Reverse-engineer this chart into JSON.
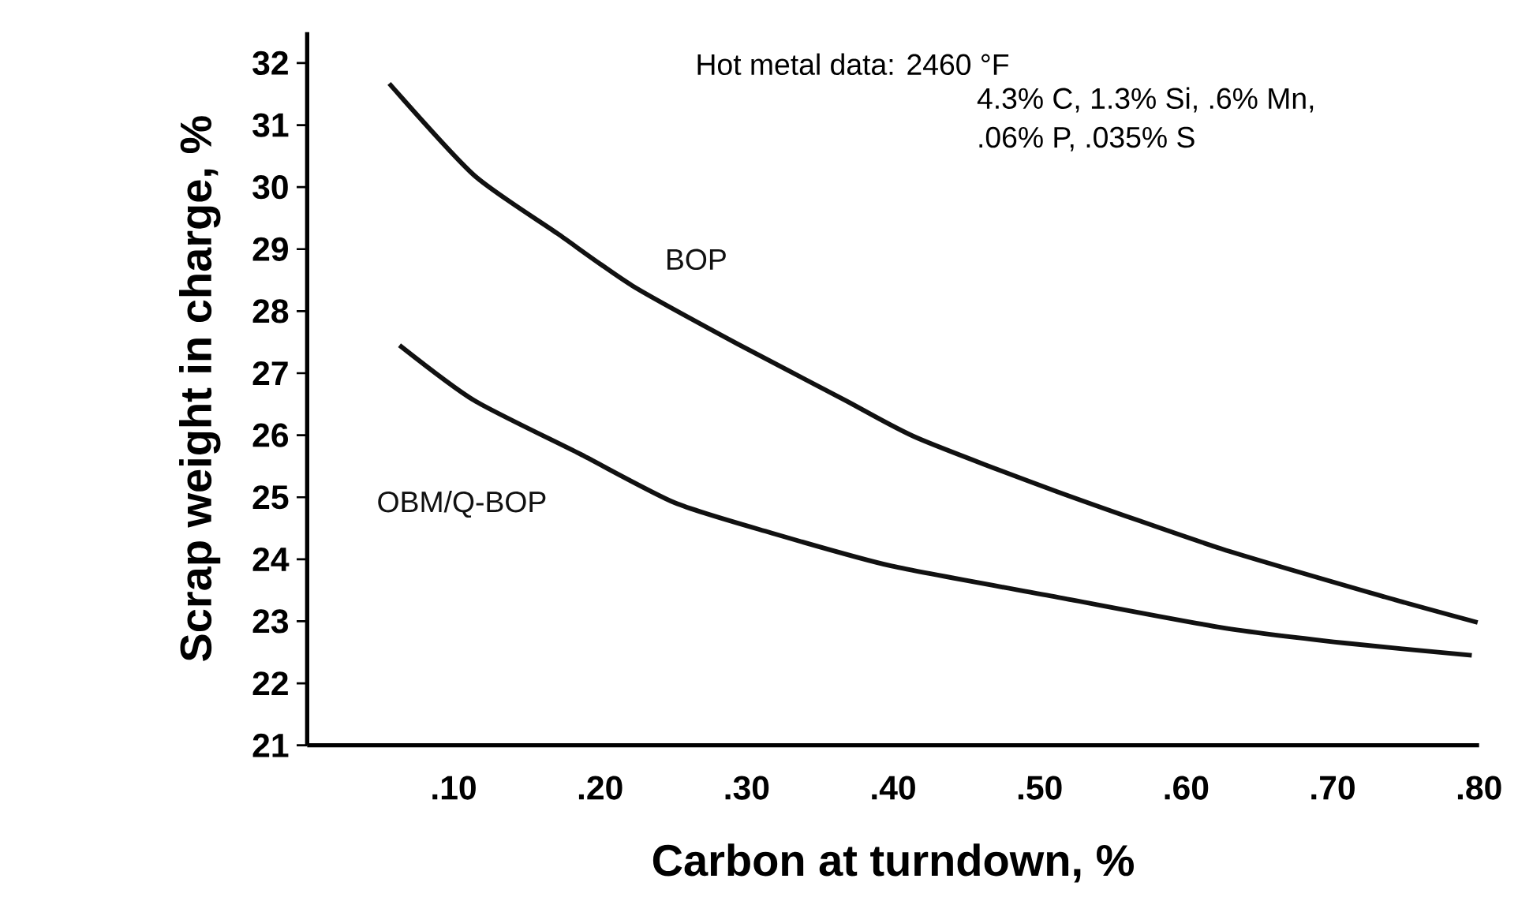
{
  "chart_data": {
    "type": "line",
    "xlabel": "Carbon at turndown, %",
    "ylabel": "Scrap weight in charge, %",
    "annotations": [
      "Hot metal data: 2460 °F",
      "4.3% C, 1.3% Si, .6% Mn,",
      ".06% P, .035% S"
    ],
    "xlim": [
      0,
      0.8
    ],
    "ylim": [
      21,
      32.5
    ],
    "xticks": [
      {
        "value": 0.1,
        "label": ".10"
      },
      {
        "value": 0.2,
        "label": ".20"
      },
      {
        "value": 0.3,
        "label": ".30"
      },
      {
        "value": 0.4,
        "label": ".40"
      },
      {
        "value": 0.5,
        "label": ".50"
      },
      {
        "value": 0.6,
        "label": ".60"
      },
      {
        "value": 0.7,
        "label": ".70"
      },
      {
        "value": 0.8,
        "label": ".80"
      }
    ],
    "yticks": [
      21,
      22,
      23,
      24,
      25,
      26,
      27,
      28,
      29,
      30,
      31,
      32
    ],
    "grid": false,
    "legend": false,
    "marker": "none",
    "line_style": "solid",
    "series": [
      {
        "name": "BOP",
        "color": "#111111",
        "x": [
          0.056,
          0.114,
          0.171,
          0.222,
          0.294,
          0.366,
          0.417,
          0.512,
          0.624,
          0.736,
          0.799
        ],
        "values": [
          31.67,
          30.19,
          29.25,
          28.41,
          27.47,
          26.58,
          25.95,
          25.09,
          24.17,
          23.39,
          22.98
        ]
      },
      {
        "name": "OBM/Q-BOP",
        "color": "#111111",
        "x": [
          0.063,
          0.114,
          0.186,
          0.251,
          0.316,
          0.399,
          0.512,
          0.624,
          0.708,
          0.795
        ],
        "values": [
          27.45,
          26.56,
          25.7,
          24.91,
          24.43,
          23.89,
          23.39,
          22.9,
          22.65,
          22.45
        ]
      }
    ]
  }
}
